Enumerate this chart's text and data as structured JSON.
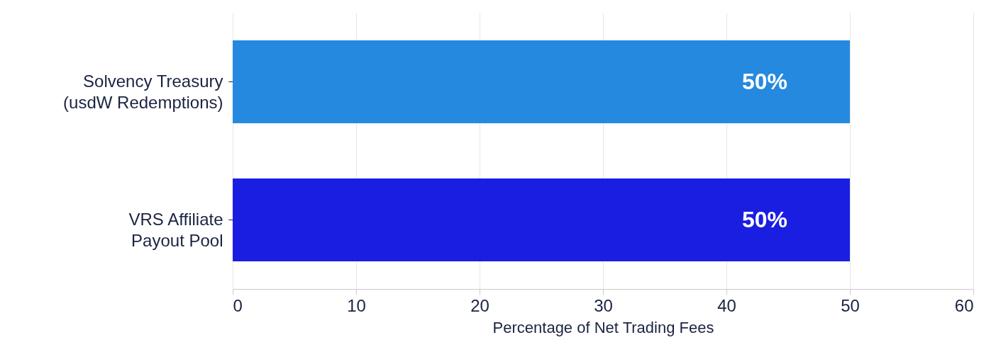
{
  "chart_data": {
    "type": "bar",
    "orientation": "horizontal",
    "xlabel": "Percentage of Net Trading Fees",
    "categories": [
      "Solvency Treasury\n(usdW Redemptions)",
      "VRS Affiliate\nPayout Pool"
    ],
    "values": [
      50,
      50
    ],
    "colors": [
      "#2589e0",
      "#1a1ee0"
    ],
    "value_labels": [
      "50%",
      "50%"
    ],
    "xlim": [
      0,
      60
    ],
    "xticks": [
      0,
      10,
      20,
      30,
      40,
      50,
      60
    ],
    "grid": "x"
  }
}
